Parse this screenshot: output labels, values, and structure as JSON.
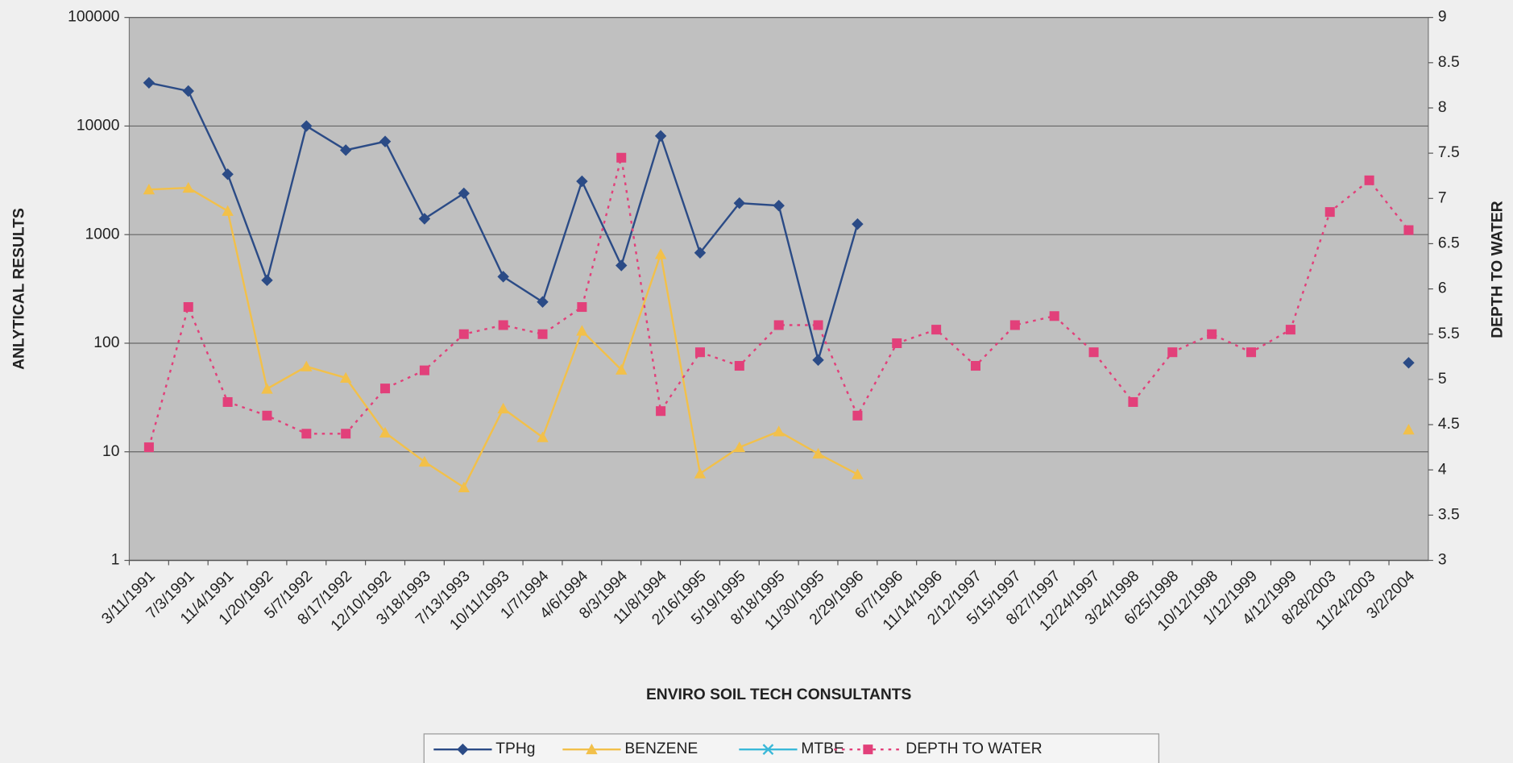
{
  "chart_data": {
    "type": "line",
    "x_label": "ENVIRO SOIL TECH CONSULTANTS",
    "y_label": "ANLYTICAL RESULTS",
    "y2_label": "DEPTH TO WATER",
    "categories": [
      "3/11/1991",
      "7/3/1991",
      "11/4/1991",
      "1/20/1992",
      "5/7/1992",
      "8/17/1992",
      "12/10/1992",
      "3/18/1993",
      "7/13/1993",
      "10/11/1993",
      "1/7/1994",
      "4/6/1994",
      "8/3/1994",
      "11/8/1994",
      "2/16/1995",
      "5/19/1995",
      "8/18/1995",
      "11/30/1995",
      "2/29/1996",
      "6/7/1996",
      "11/14/1996",
      "2/12/1997",
      "5/15/1997",
      "8/27/1997",
      "12/24/1997",
      "3/24/1998",
      "6/25/1998",
      "10/12/1998",
      "1/12/1999",
      "4/12/1999",
      "8/28/2003",
      "11/24/2003",
      "3/2/2004"
    ],
    "ylog": true,
    "ylim": [
      1,
      100000
    ],
    "yticks": [
      1,
      10,
      100,
      1000,
      10000,
      100000
    ],
    "y2lim": [
      3,
      9
    ],
    "y2ticks": [
      3,
      3.5,
      4,
      4.5,
      5,
      5.5,
      6,
      6.5,
      7,
      7.5,
      8,
      8.5,
      9
    ],
    "grid": true,
    "series": [
      {
        "name": "TPHg",
        "color": "#2b4b86",
        "marker": "diamond",
        "dash": "solid",
        "values": [
          25000,
          21000,
          3600,
          380,
          10000,
          6000,
          7200,
          1400,
          2400,
          410,
          240,
          3100,
          520,
          8100,
          680,
          1950,
          1850,
          70,
          1250,
          null,
          null,
          null,
          null,
          null,
          null,
          null,
          null,
          null,
          null,
          null,
          null,
          null,
          66
        ]
      },
      {
        "name": "BENZENE",
        "color": "#f2c04a",
        "marker": "triangle",
        "dash": "solid",
        "values": [
          2600,
          2700,
          1650,
          38,
          61,
          48,
          15,
          8.1,
          4.7,
          25,
          13.6,
          130,
          57,
          660,
          6.3,
          11,
          15.4,
          9.6,
          6.2,
          null,
          null,
          null,
          null,
          null,
          null,
          null,
          null,
          null,
          null,
          null,
          null,
          null,
          16
        ]
      },
      {
        "name": "MTBE",
        "color": "#3ab8d8",
        "marker": "cross",
        "dash": "solid",
        "values": [
          null,
          null,
          null,
          null,
          null,
          null,
          null,
          null,
          null,
          null,
          null,
          null,
          null,
          null,
          null,
          null,
          null,
          null,
          null,
          null,
          null,
          null,
          null,
          null,
          null,
          null,
          null,
          null,
          null,
          null,
          null,
          null,
          null
        ]
      },
      {
        "name": "DEPTH TO WATER",
        "color": "#e2407a",
        "marker": "square",
        "dash": "dotted",
        "axis": "y2",
        "values": [
          4.25,
          5.8,
          4.75,
          4.6,
          4.4,
          4.4,
          4.9,
          5.1,
          5.5,
          5.6,
          5.5,
          5.8,
          7.45,
          4.65,
          5.3,
          5.15,
          5.6,
          5.6,
          4.6,
          5.4,
          5.55,
          5.15,
          5.6,
          5.7,
          5.3,
          4.75,
          5.3,
          5.5,
          5.3,
          5.55,
          6.85,
          7.2,
          6.65
        ]
      }
    ]
  }
}
